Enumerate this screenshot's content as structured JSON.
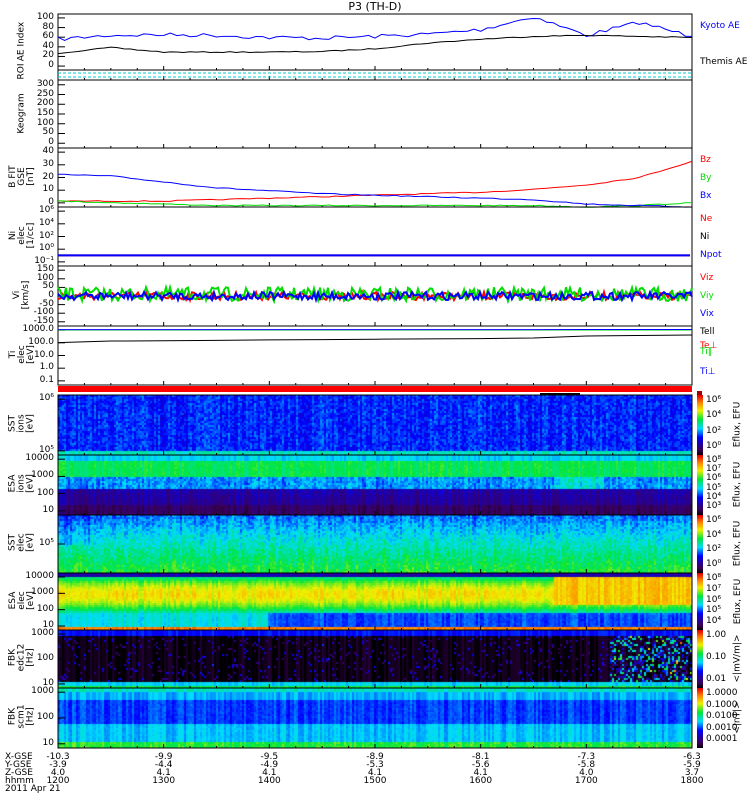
{
  "title": "P3 (TH-D)",
  "chart_data": [
    {
      "type": "line",
      "id": "ae",
      "label": [
        "AE Index"
      ],
      "ylim": [
        0,
        100
      ],
      "yticks": [
        "100",
        "80",
        "60",
        "40",
        "20",
        "0"
      ],
      "x_hours": [
        12,
        12.5,
        13,
        13.5,
        14,
        14.5,
        15,
        15.5,
        16,
        16.5,
        17,
        17.5,
        18
      ],
      "series": [
        {
          "name": "Kyoto AE",
          "color": "#0000ff",
          "values": [
            55,
            62,
            63,
            62,
            58,
            57,
            60,
            64,
            72,
            95,
            62,
            85,
            60
          ]
        },
        {
          "name": "Themis AE",
          "color": "#000000",
          "values": [
            30,
            40,
            32,
            32,
            32,
            33,
            38,
            48,
            55,
            60,
            62,
            60,
            58
          ]
        }
      ]
    },
    {
      "type": "line",
      "id": "roi",
      "label": [
        "ROI"
      ],
      "yticks": [],
      "series": []
    },
    {
      "type": "heatmap",
      "id": "keo",
      "label": [
        "Keogram"
      ],
      "ylim": [
        0,
        300
      ],
      "yticks": [
        "300",
        "250",
        "200",
        "150",
        "100",
        "50",
        "0"
      ],
      "series": []
    },
    {
      "type": "line",
      "id": "b",
      "label": [
        "B FIT",
        "GSE",
        "[nT]"
      ],
      "ylim": [
        0,
        40
      ],
      "yticks": [
        "40",
        "30",
        "20",
        "10",
        "0"
      ],
      "x_hours": [
        12,
        12.5,
        13,
        13.5,
        14,
        14.5,
        15,
        15.5,
        16,
        16.5,
        17,
        17.5,
        18
      ],
      "series": [
        {
          "name": "Bz",
          "color": "#ff0000",
          "values": [
            4,
            4,
            4,
            5,
            6,
            7,
            8,
            9,
            10,
            12,
            15,
            20,
            31
          ]
        },
        {
          "name": "By",
          "color": "#00dd00",
          "values": [
            4,
            3,
            2,
            1,
            1,
            1,
            1,
            1,
            1,
            1,
            0,
            1,
            3
          ]
        },
        {
          "name": "Bx",
          "color": "#0000ff",
          "values": [
            22,
            21,
            17,
            13,
            11,
            9,
            8,
            7,
            6,
            5,
            2,
            1,
            0
          ]
        }
      ]
    },
    {
      "type": "line",
      "id": "ni",
      "label": [
        "Ni",
        "elec",
        "[1/cc]"
      ],
      "yticks": [
        "10⁶",
        "10⁴",
        "10²",
        "10⁰",
        "10⁻¹"
      ],
      "series": [
        {
          "name": "Ne",
          "color": "#ff0000",
          "values": [
            0.3
          ]
        },
        {
          "name": "Ni",
          "color": "#000000",
          "values": [
            0.3
          ]
        },
        {
          "name": "Npot",
          "color": "#0000ff",
          "values": [
            0.3
          ]
        }
      ]
    },
    {
      "type": "line",
      "id": "vi",
      "label": [
        "Vi",
        "[km/s]"
      ],
      "ylim": [
        -175,
        175
      ],
      "yticks": [
        "150",
        "100",
        "50",
        "0",
        "-50",
        "-100",
        "-150"
      ],
      "series": [
        {
          "name": "Viz",
          "color": "#ff0000",
          "values": [
            0
          ]
        },
        {
          "name": "Viy",
          "color": "#00dd00",
          "values": [
            10
          ]
        },
        {
          "name": "Vix",
          "color": "#0000ff",
          "values": [
            0
          ]
        }
      ]
    },
    {
      "type": "line",
      "id": "ti",
      "label": [
        "Ti",
        "elec",
        "[eV]"
      ],
      "yticks": [
        "1000.0",
        "100.0",
        "10.0",
        "1.0",
        "0.1"
      ],
      "x_hours": [
        12,
        12.5,
        13,
        13.5,
        14,
        14.5,
        15,
        15.5,
        16,
        16.5,
        17,
        17.5,
        18
      ],
      "series": [
        {
          "name": "Tell",
          "color": "#000000",
          "values": [
            300,
            400,
            420,
            450,
            500,
            520,
            560,
            600,
            620,
            700,
            1000,
            1100,
            1200
          ]
        },
        {
          "name": "Te⊥",
          "color": "#ff0000",
          "values": []
        },
        {
          "name": "Ti‖",
          "color": "#00dd00",
          "values": [
            3000,
            3000,
            3000,
            3000,
            3000,
            3000,
            3000,
            3000,
            3000,
            3000,
            3000,
            3000,
            3000
          ]
        },
        {
          "name": "Ti⊥",
          "color": "#0000ff",
          "values": [
            3200,
            3200,
            3200,
            3200,
            3200,
            3200,
            3200,
            3200,
            3200,
            3200,
            3300,
            3300,
            3300
          ]
        }
      ]
    },
    {
      "type": "heatmap",
      "id": "sst_i",
      "label": [
        "SST",
        "ions",
        "[eV]"
      ],
      "yticks": [
        "10⁶",
        "10⁵"
      ],
      "colorbar": {
        "ticks": [
          "10⁶",
          "10⁴",
          "10²",
          "10⁰"
        ],
        "label": "Eflux, EFU"
      }
    },
    {
      "type": "heatmap",
      "id": "esa_i",
      "label": [
        "ESA",
        "ions",
        "[eV]"
      ],
      "yticks": [
        "10000",
        "1000",
        "100",
        "10"
      ],
      "colorbar": {
        "ticks": [
          "10⁸",
          "10⁷",
          "10⁶",
          "10⁵",
          "10⁴",
          "10³"
        ],
        "label": "Eflux, EFU"
      }
    },
    {
      "type": "heatmap",
      "id": "sst_e",
      "label": [
        "SST",
        "elec",
        "[eV]"
      ],
      "yticks": [
        "10⁵"
      ],
      "colorbar": {
        "ticks": [
          "10⁶",
          "10⁴",
          "10²",
          "10⁰"
        ],
        "label": "Eflux, EFU"
      }
    },
    {
      "type": "heatmap",
      "id": "esa_e",
      "label": [
        "ESA",
        "elec",
        "[eV]"
      ],
      "yticks": [
        "10000",
        "1000",
        "100",
        "10"
      ],
      "colorbar": {
        "ticks": [
          "10⁸",
          "10⁷",
          "10⁶",
          "10⁵",
          "10⁴"
        ],
        "label": "Eflux, EFU"
      }
    },
    {
      "type": "heatmap",
      "id": "fbk_e",
      "label": [
        "FBK",
        "edc12",
        "[Hz]"
      ],
      "yticks": [
        "1000",
        "100",
        "10"
      ],
      "colorbar": {
        "ticks": [
          "1.00",
          "0.10",
          "0.01"
        ],
        "label": "<|mV/m|>"
      }
    },
    {
      "type": "heatmap",
      "id": "fbk_b",
      "label": [
        "FBK",
        "scm1",
        "[Hz]"
      ],
      "yticks": [
        "1000",
        "100",
        "10"
      ],
      "colorbar": {
        "ticks": [
          "1.0000",
          "0.1000",
          "0.0100",
          "0.0010",
          "0.0001"
        ],
        "label": "<|nT|>"
      }
    }
  ],
  "bottom_axis": {
    "row_labels": [
      "X-GSE",
      "Y-GSE",
      "Z-GSE",
      "hhmm"
    ],
    "date": "2011 Apr 21",
    "columns": [
      [
        "-10.3",
        "-3.9",
        "4.0",
        "1200"
      ],
      [
        "-9.9",
        "-4.4",
        "4.1",
        "1300"
      ],
      [
        "-9.5",
        "-4.9",
        "4.1",
        "1400"
      ],
      [
        "-8.9",
        "-5.3",
        "4.1",
        "1500"
      ],
      [
        "-8.1",
        "-5.6",
        "4.1",
        "1600"
      ],
      [
        "-7.3",
        "-5.8",
        "4.0",
        "1700"
      ],
      [
        "-6.3",
        "-5.9",
        "3.7",
        "1800"
      ]
    ]
  }
}
